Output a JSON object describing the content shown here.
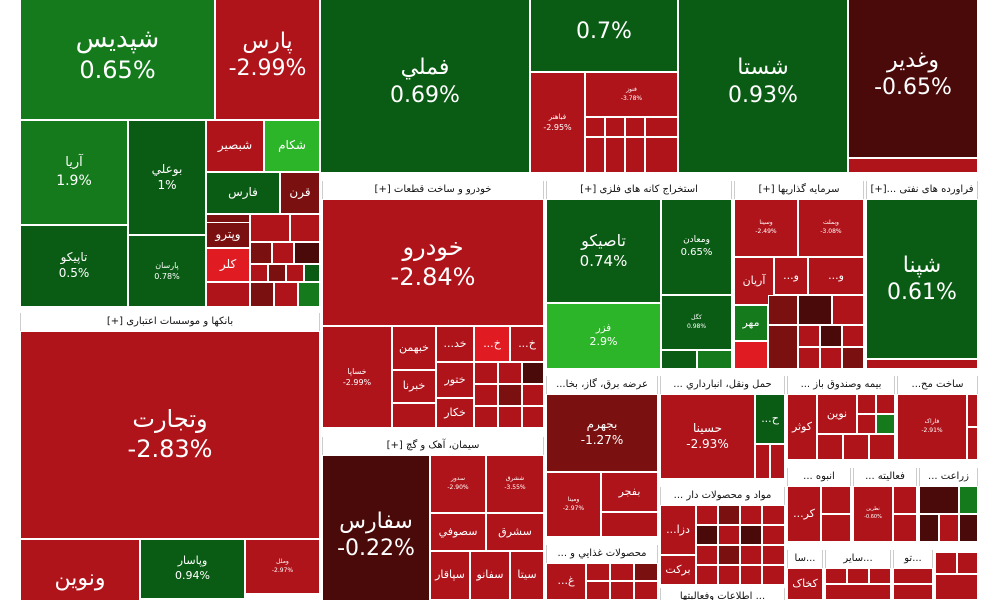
{
  "colors": {
    "deep_green": "#0a5c14",
    "green": "#157a1c",
    "bright_green": "#2db52a",
    "deep_red": "#4a0a0a",
    "dark_red": "#7a1010",
    "red": "#b0141b",
    "bright_red": "#e01b22",
    "border": "#ffffff"
  },
  "sectors": {
    "banks": "بانکها و موسسات اعتباری [+]",
    "auto": "خودرو و ساخت قطعات [+]",
    "metals": "استخراج کانه های فلزی [+]",
    "investment": "سرمایه گذاریها [+]",
    "oil": "فراورده های نفتی ...[+]",
    "cement": "سیمان، آهک و گچ [+]",
    "utilities": "عرضه برق، گاز، بخا...",
    "transport": "حمل ونقل، انبارداري ...",
    "insurance": "بیمه وصندوق باز ...",
    "construction": "ساخت مح...",
    "food": "محصولات غذايي و ...",
    "materials": "مواد و محصولات دار ...",
    "mass": "انبوه ...",
    "activities": "فعالیته ...",
    "agri": "زراعت ...",
    "misc1": "...تو",
    "misc2": "...سا",
    "misc3": "...سایر",
    "bottom1": "... اطلاعات وفعالیتها"
  },
  "tiles": {
    "shapdis": {
      "name": "شپدیس",
      "pct": "0.65%"
    },
    "pars": {
      "name": "پارس",
      "pct": "-2.99%"
    },
    "fameli": {
      "name": "فملي",
      "pct": "0.69%"
    },
    "top_mid": {
      "pct": "0.7%"
    },
    "shasta": {
      "name": "شستا",
      "pct": "0.93%"
    },
    "vaghadir": {
      "name": "وغدير",
      "pct": "-0.65%"
    },
    "faamar": {
      "name": "فباهنر",
      "pct": "-2.95%"
    },
    "fanoz": {
      "name": "فنوز",
      "pct": "-3.78%"
    },
    "arya": {
      "name": "آريا",
      "pct": "1.9%"
    },
    "boali": {
      "name": "بوعلي",
      "pct": "1%"
    },
    "shabsir": {
      "name": "شبصير"
    },
    "shekam": {
      "name": "شکام"
    },
    "fars": {
      "name": "فارس"
    },
    "qarn": {
      "name": "قرن"
    },
    "tapiko": {
      "name": "تاپيكو",
      "pct": "0.5%"
    },
    "parsan": {
      "name": "پارسان",
      "pct": "0.78%"
    },
    "vitaro": {
      "name": "وپترو"
    },
    "kala": {
      "name": "کلر"
    },
    "vtejarat": {
      "name": "وتجارت",
      "pct": "-2.83%"
    },
    "vnovin": {
      "name": "ونوین"
    },
    "vpasar": {
      "name": "وپاسار",
      "pct": "0.94%"
    },
    "vamal": {
      "name": "وملل",
      "pct": "-2.97%"
    },
    "khodro": {
      "name": "خودرو",
      "pct": "-2.84%"
    },
    "khsapa": {
      "name": "خساپا",
      "pct": "-2.99%"
    },
    "khbahman": {
      "name": "خبهمن"
    },
    "khodab": {
      "name": "...خد"
    },
    "khar": {
      "name": "...خ"
    },
    "khar2": {
      "name": "...خ"
    },
    "khtor": {
      "name": "ختور"
    },
    "khbarna": {
      "name": "خبرنا"
    },
    "khkar": {
      "name": "خکار"
    },
    "tapiko2": {
      "name": "تاصیکو",
      "pct": "0.74%"
    },
    "vmaaden": {
      "name": "ومعادن",
      "pct": "0.65%"
    },
    "fazr": {
      "name": "فزر",
      "pct": "2.9%"
    },
    "kegol": {
      "name": "کگل",
      "pct": "0.98%"
    },
    "vsina": {
      "name": "وسینا",
      "pct": "-2.49%"
    },
    "vbsh": {
      "name": "وبملت",
      "pct": "-3.08%"
    },
    "arian": {
      "name": "آريان"
    },
    "vo1": {
      "name": "...و"
    },
    "vo2": {
      "name": "...و"
    },
    "mehr": {
      "name": "مهر"
    },
    "shepna": {
      "name": "شپنا",
      "pct": "0.61%"
    },
    "sefars": {
      "name": "سفارس",
      "pct": "-0.22%"
    },
    "sdeh": {
      "name": "سدور",
      "pct": "-2.90%"
    },
    "sharq": {
      "name": "ششرق",
      "pct": "-3.55%"
    },
    "sofi": {
      "name": "سصوفي"
    },
    "sshargh": {
      "name": "سشرق"
    },
    "sapaqar": {
      "name": "سپاقار"
    },
    "sfano": {
      "name": "سفانو"
    },
    "sita": {
      "name": "سيتا"
    },
    "sarom": {
      "name": "سارو"
    },
    "bjahrom": {
      "name": "بجهرم",
      "pct": "-1.27%"
    },
    "vmina": {
      "name": "ومینا",
      "pct": "-2.97%"
    },
    "bfajr": {
      "name": "بفجر"
    },
    "hsina": {
      "name": "حسينا",
      "pct": "-2.93%"
    },
    "hkh": {
      "name": "...ح"
    },
    "kotr": {
      "name": "کوثر"
    },
    "novin2": {
      "name": "نوين"
    },
    "farak": {
      "name": "فاراک",
      "pct": "-2.91%"
    },
    "deza": {
      "name": "...دزا"
    },
    "barkat": {
      "name": "برکت"
    },
    "gh": {
      "name": "...غ"
    },
    "kr": {
      "name": "...کر"
    },
    "nekhs": {
      "name": "نطرين",
      "pct": "-0.60%"
    },
    "kekha": {
      "name": "کخاک"
    }
  }
}
